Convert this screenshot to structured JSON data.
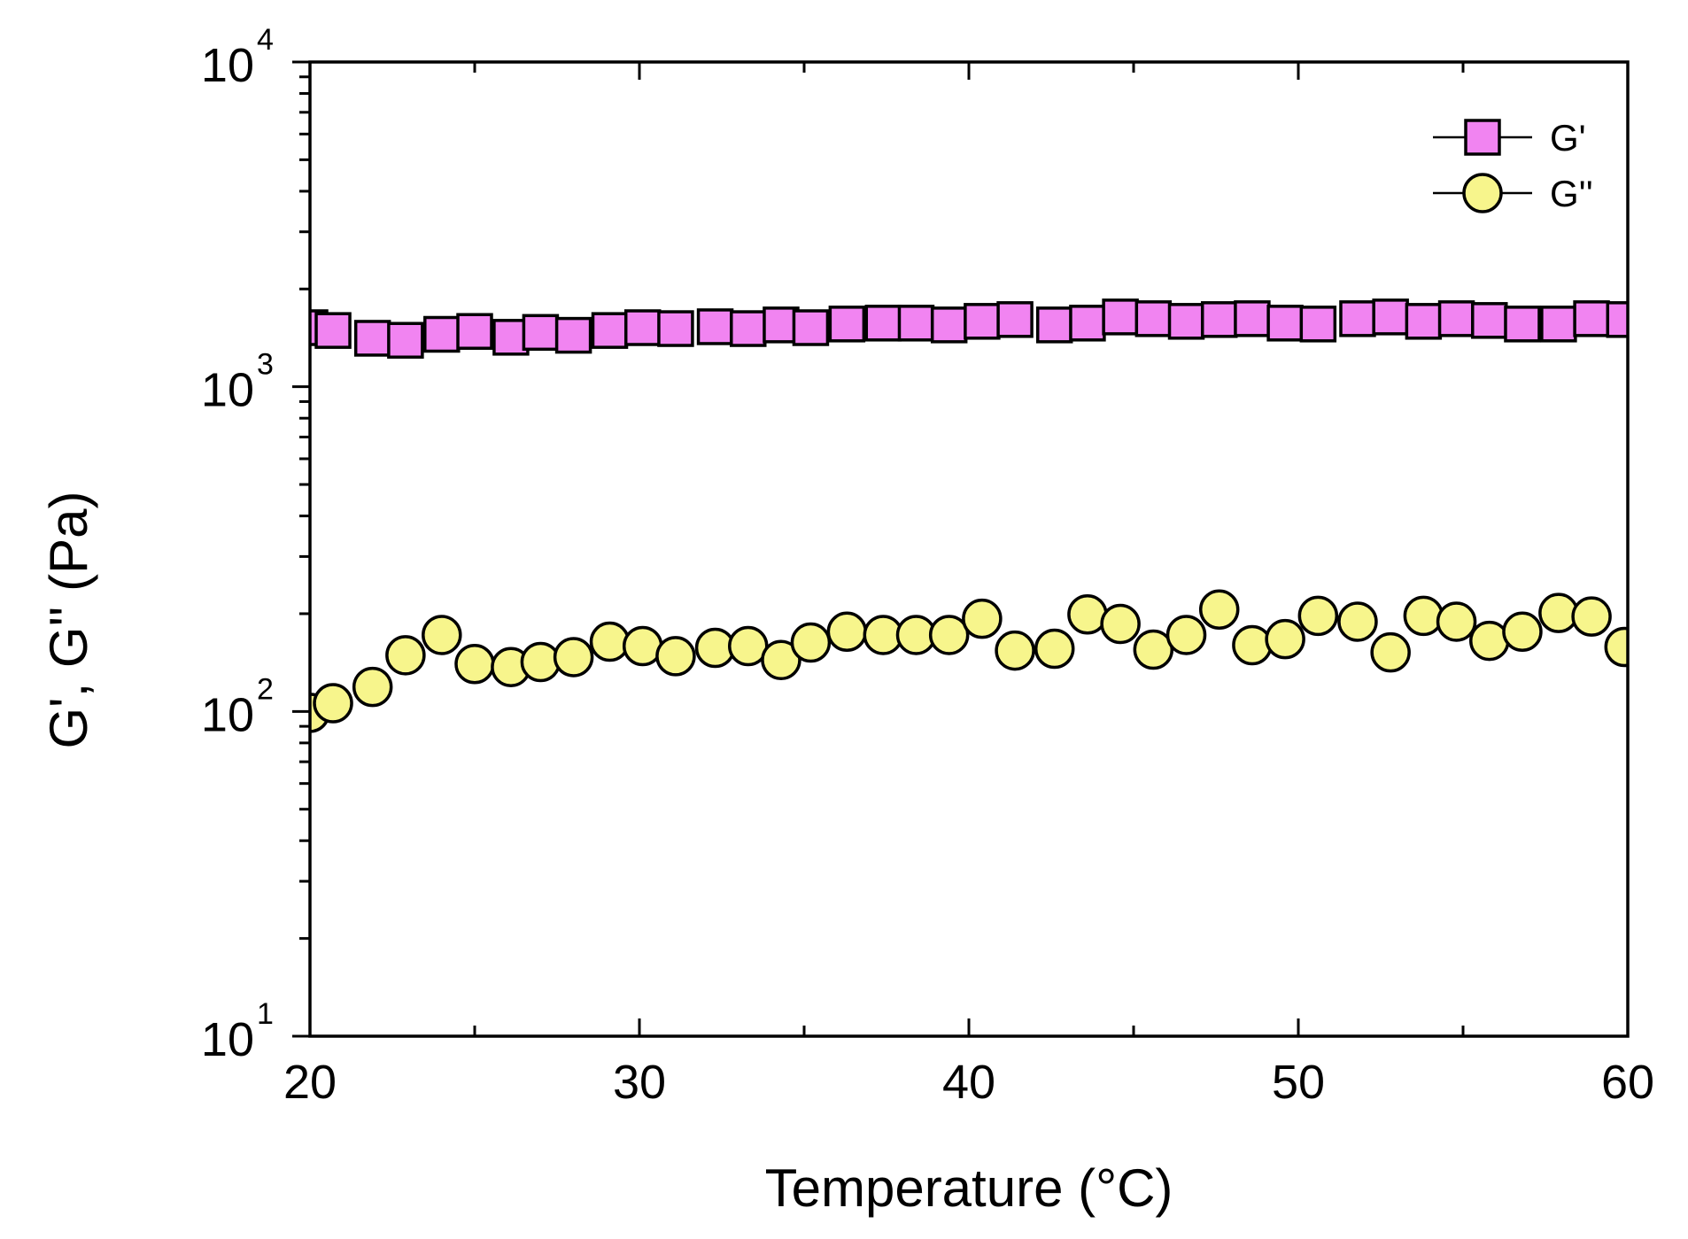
{
  "chart_data": {
    "type": "scatter",
    "title": "",
    "xlabel": "Temperature (°C)",
    "ylabel": "G', G'' (Pa)",
    "xlim": [
      20,
      60
    ],
    "ylim": [
      10,
      10000
    ],
    "yscale": "log",
    "x_ticks": [
      20,
      30,
      40,
      50,
      60
    ],
    "x_tick_labels": [
      "20",
      "30",
      "40",
      "50",
      "60"
    ],
    "y_ticks": [
      {
        "base": "10",
        "exp": "1"
      },
      {
        "base": "10",
        "exp": "2"
      },
      {
        "base": "10",
        "exp": "3"
      },
      {
        "base": "10",
        "exp": "4"
      }
    ],
    "legend_position": "top-right",
    "series": [
      {
        "name": "G'",
        "marker": "square",
        "color": "#f184f1",
        "x": [
          20.0,
          20.7,
          21.9,
          22.9,
          24.0,
          25.0,
          26.1,
          27.0,
          28.0,
          29.1,
          30.1,
          31.1,
          32.3,
          33.3,
          34.3,
          35.2,
          36.3,
          37.4,
          38.4,
          39.4,
          40.4,
          41.4,
          42.6,
          43.6,
          44.6,
          45.6,
          46.6,
          47.6,
          48.6,
          49.6,
          50.6,
          51.8,
          52.8,
          53.8,
          54.8,
          55.8,
          56.8,
          57.9,
          58.9,
          59.9
        ],
        "y": [
          1520,
          1490,
          1410,
          1390,
          1450,
          1480,
          1420,
          1470,
          1440,
          1490,
          1520,
          1510,
          1530,
          1510,
          1550,
          1520,
          1560,
          1570,
          1570,
          1550,
          1590,
          1610,
          1550,
          1570,
          1640,
          1620,
          1590,
          1610,
          1620,
          1570,
          1560,
          1620,
          1640,
          1590,
          1620,
          1600,
          1560,
          1560,
          1620,
          1610
        ]
      },
      {
        "name": "G''",
        "marker": "circle",
        "color": "#f7f58c",
        "x": [
          20.0,
          20.7,
          21.9,
          22.9,
          24.0,
          25.0,
          26.1,
          27.0,
          28.0,
          29.1,
          30.1,
          31.1,
          32.3,
          33.3,
          34.3,
          35.2,
          36.3,
          37.4,
          38.4,
          39.4,
          40.4,
          41.4,
          42.6,
          43.6,
          44.6,
          45.6,
          46.6,
          47.6,
          48.6,
          49.6,
          50.6,
          51.8,
          52.8,
          53.8,
          54.8,
          55.8,
          56.8,
          57.9,
          58.9,
          59.9
        ],
        "y": [
          99,
          106,
          119,
          149,
          172,
          140,
          137,
          142,
          147,
          164,
          159,
          148,
          157,
          159,
          144,
          163,
          176,
          172,
          172,
          172,
          193,
          154,
          156,
          199,
          186,
          155,
          172,
          206,
          160,
          167,
          197,
          189,
          152,
          197,
          189,
          165,
          176,
          201,
          196,
          158
        ]
      }
    ]
  }
}
